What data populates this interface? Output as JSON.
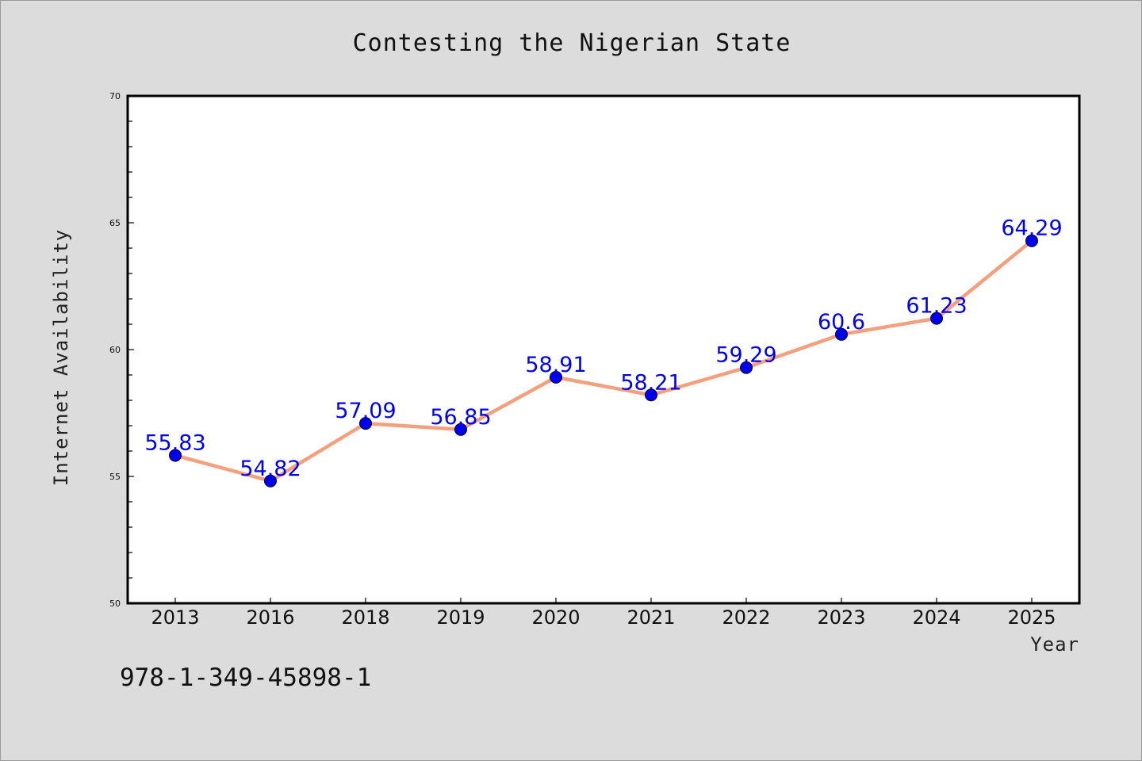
{
  "chart_data": {
    "type": "line",
    "title": "Contesting the Nigerian State",
    "xlabel": "Year",
    "ylabel": "Internet Availability",
    "categories": [
      "2013",
      "2016",
      "2018",
      "2019",
      "2020",
      "2021",
      "2022",
      "2023",
      "2024",
      "2025"
    ],
    "series": [
      {
        "values": [
          55.83,
          54.82,
          57.09,
          56.85,
          58.91,
          58.21,
          59.29,
          60.6,
          61.23,
          64.29
        ],
        "data_labels": [
          "55.83",
          "54.82",
          "57.09",
          "56.85",
          "58.91",
          "58.21",
          "59.29",
          "60.6",
          "61.23",
          "64.29"
        ]
      }
    ],
    "ylim": [
      50,
      70
    ],
    "yticks": [
      "50",
      "55",
      "60",
      "65",
      "70"
    ],
    "grid": false,
    "legend": "none",
    "colors": {
      "line": "#f4a07d",
      "marker": "#0000ee",
      "data_label": "#0000ee",
      "background": "#dcdcdc",
      "plot_area": "#ffffff"
    }
  },
  "footer": {
    "isbn": "978-1-349-45898-1"
  }
}
